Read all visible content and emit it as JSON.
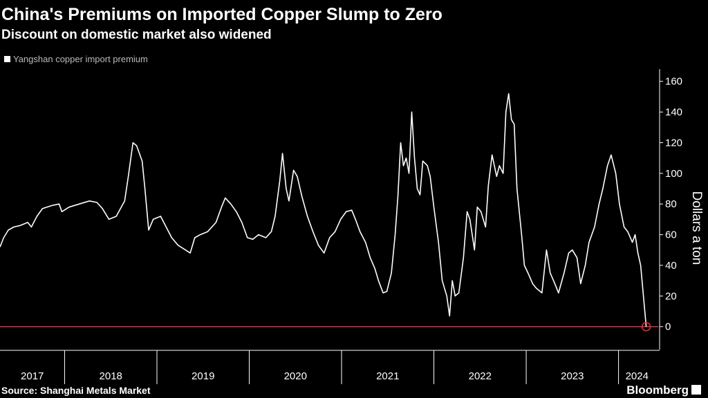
{
  "chart_data": {
    "type": "line",
    "title": "China's Premiums on Imported Copper Slump to Zero",
    "subtitle": "Discount on domestic market also widened",
    "y_label": "Dollars a ton",
    "source": "Source: Shanghai Metals Market",
    "brand": "Bloomberg",
    "x": [
      2017.3,
      2017.34,
      2017.39,
      2017.45,
      2017.52,
      2017.6,
      2017.64,
      2017.7,
      2017.76,
      2017.86,
      2017.94,
      2017.97,
      2018.05,
      2018.16,
      2018.27,
      2018.35,
      2018.41,
      2018.48,
      2018.56,
      2018.65,
      2018.69,
      2018.74,
      2018.78,
      2018.84,
      2018.87,
      2018.91,
      2018.96,
      2019.04,
      2019.1,
      2019.16,
      2019.23,
      2019.31,
      2019.36,
      2019.41,
      2019.47,
      2019.55,
      2019.64,
      2019.7,
      2019.74,
      2019.8,
      2019.86,
      2019.92,
      2019.98,
      2020.04,
      2020.1,
      2020.18,
      2020.24,
      2020.28,
      2020.33,
      2020.36,
      2020.4,
      2020.43,
      2020.48,
      2020.52,
      2020.57,
      2020.63,
      2020.69,
      2020.75,
      2020.81,
      2020.87,
      2020.93,
      2020.99,
      2021.05,
      2021.11,
      2021.15,
      2021.2,
      2021.26,
      2021.31,
      2021.36,
      2021.4,
      2021.45,
      2021.49,
      2021.54,
      2021.58,
      2021.61,
      2021.64,
      2021.67,
      2021.7,
      2021.73,
      2021.76,
      2021.79,
      2021.82,
      2021.85,
      2021.88,
      2021.93,
      2021.96,
      2022.0,
      2022.05,
      2022.09,
      2022.14,
      2022.17,
      2022.2,
      2022.23,
      2022.27,
      2022.32,
      2022.36,
      2022.39,
      2022.44,
      2022.47,
      2022.51,
      2022.56,
      2022.59,
      2022.63,
      2022.68,
      2022.71,
      2022.75,
      2022.78,
      2022.81,
      2022.84,
      2022.87,
      2022.9,
      2022.95,
      2022.98,
      2023.02,
      2023.07,
      2023.11,
      2023.17,
      2023.22,
      2023.26,
      2023.31,
      2023.35,
      2023.41,
      2023.46,
      2023.5,
      2023.55,
      2023.59,
      2023.64,
      2023.68,
      2023.74,
      2023.79,
      2023.83,
      2023.88,
      2023.92,
      2023.97,
      2024.01,
      2024.06,
      2024.1,
      2024.15,
      2024.18,
      2024.21,
      2024.24,
      2024.27,
      2024.3
    ],
    "series": [
      {
        "name": "Yangshan copper import premium",
        "color": "#ffffff",
        "values": [
          52,
          58,
          63,
          65,
          66,
          68,
          65,
          72,
          77,
          79,
          80,
          75,
          78,
          80,
          82,
          81,
          77,
          70,
          72,
          82,
          98,
          120,
          118,
          108,
          90,
          63,
          70,
          72,
          65,
          58,
          53,
          50,
          48,
          58,
          60,
          62,
          68,
          78,
          84,
          80,
          75,
          68,
          58,
          57,
          60,
          58,
          62,
          72,
          95,
          113,
          90,
          82,
          102,
          98,
          85,
          72,
          62,
          53,
          48,
          58,
          62,
          70,
          75,
          76,
          70,
          62,
          55,
          45,
          38,
          30,
          22,
          23,
          35,
          60,
          85,
          120,
          105,
          110,
          100,
          140,
          110,
          90,
          86,
          108,
          105,
          98,
          78,
          55,
          30,
          20,
          7,
          30,
          20,
          22,
          45,
          75,
          70,
          50,
          78,
          75,
          65,
          92,
          112,
          98,
          105,
          100,
          140,
          152,
          135,
          132,
          90,
          60,
          40,
          35,
          28,
          25,
          22,
          50,
          35,
          28,
          22,
          35,
          48,
          50,
          45,
          28,
          40,
          55,
          65,
          80,
          90,
          105,
          112,
          100,
          80,
          65,
          62,
          55,
          60,
          48,
          40,
          20,
          0
        ]
      }
    ],
    "xlim": [
      2017.3,
      2024.43
    ],
    "xticks": [
      2018,
      2019,
      2020,
      2021,
      2022,
      2023,
      2024
    ],
    "xtick_labels": [
      {
        "value": 2017.65,
        "label": "2017"
      },
      {
        "value": 2018.5,
        "label": "2018"
      },
      {
        "value": 2019.5,
        "label": "2019"
      },
      {
        "value": 2020.5,
        "label": "2020"
      },
      {
        "value": 2021.5,
        "label": "2021"
      },
      {
        "value": 2022.5,
        "label": "2022"
      },
      {
        "value": 2023.5,
        "label": "2023"
      },
      {
        "value": 2024.2,
        "label": "2024"
      }
    ],
    "ylim": [
      -15,
      168
    ],
    "yticks": [
      0,
      20,
      40,
      60,
      80,
      100,
      120,
      140,
      160
    ],
    "grid": false,
    "hline": {
      "value": 0,
      "color": "#e0313b"
    }
  }
}
